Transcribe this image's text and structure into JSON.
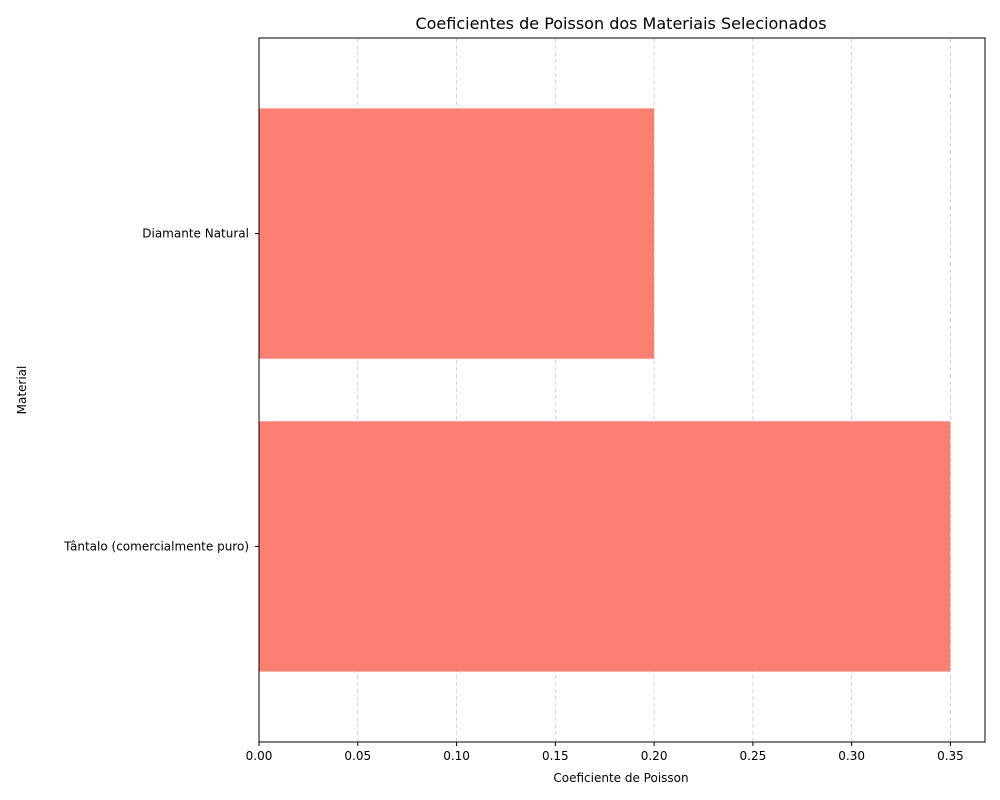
{
  "chart_data": {
    "type": "bar",
    "orientation": "horizontal",
    "title": "Coeficientes de Poisson dos Materiais Selecionados",
    "xlabel": "Coeficiente de Poisson",
    "ylabel": "Material",
    "categories": [
      "Tântalo (comercialmente puro)",
      "Diamante Natural"
    ],
    "values": [
      0.35,
      0.2
    ],
    "xlim": [
      0,
      0.3675
    ],
    "xticks": [
      "0.00",
      "0.05",
      "0.10",
      "0.15",
      "0.20",
      "0.25",
      "0.30",
      "0.35"
    ],
    "grid": "x-axis dashed",
    "bar_color": "#fa8072",
    "grid_color": "#cccccc"
  }
}
